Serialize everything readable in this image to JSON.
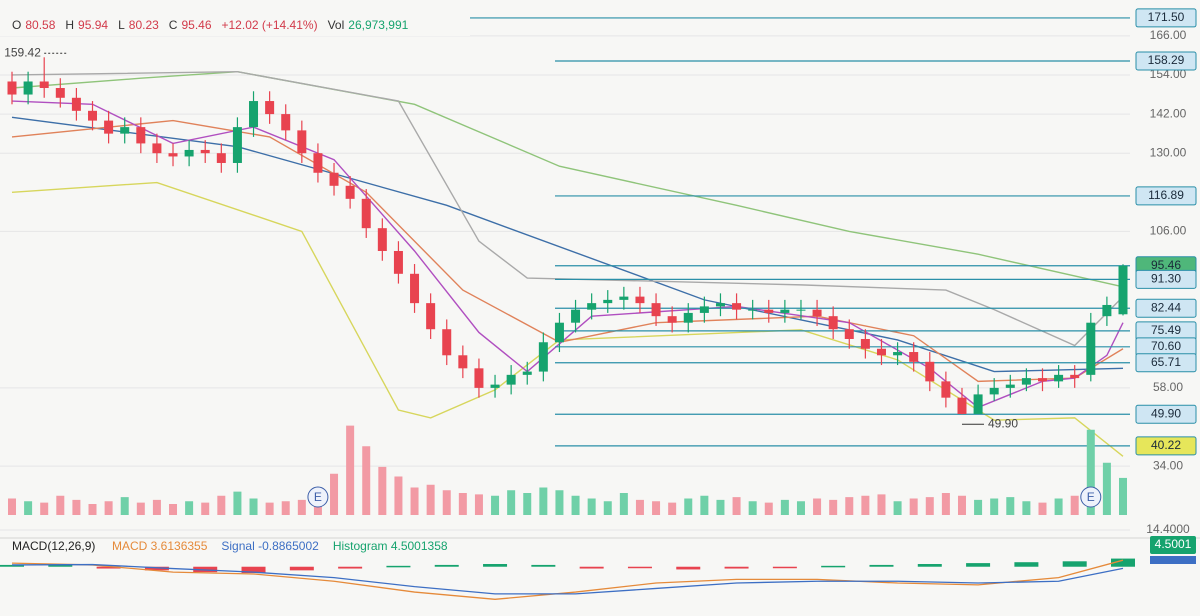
{
  "header": [
    {
      "key": "O",
      "value": "80.58"
    },
    {
      "key": "H",
      "value": "95.94"
    },
    {
      "key": "L",
      "value": "80.23"
    },
    {
      "key": "C",
      "value": "95.46"
    },
    {
      "key": "",
      "value": "+12.02 (+14.41%)"
    },
    {
      "key": "Vol",
      "value": "26,973,991"
    }
  ],
  "chart_data": [
    {
      "type": "candlestick",
      "up_color": "#16a36e",
      "down_color": "#e8434f",
      "open": [
        152,
        148,
        152,
        150,
        147,
        143,
        140,
        136,
        138,
        133,
        130,
        129,
        131,
        130,
        127,
        138,
        146,
        142,
        137,
        130,
        124,
        120,
        116,
        107,
        100,
        93,
        84,
        76,
        68,
        64,
        58,
        59,
        62,
        63,
        72,
        78,
        82,
        84,
        85,
        86,
        84,
        80,
        78,
        81,
        83,
        84,
        82,
        82,
        81,
        82,
        82,
        80,
        76,
        73,
        70,
        68,
        69,
        66,
        60,
        55,
        50,
        56,
        58,
        59,
        61,
        60,
        62,
        62,
        80,
        80.58
      ],
      "high": [
        155,
        155,
        159.42,
        153,
        150,
        146,
        143,
        141,
        141,
        136,
        133,
        134,
        134,
        133,
        141,
        149,
        149,
        145,
        140,
        133,
        127,
        123,
        119,
        110,
        103,
        96,
        87,
        79,
        71,
        67,
        62,
        65,
        66,
        75,
        81,
        85,
        87,
        88,
        89,
        89,
        87,
        83,
        84,
        86,
        87,
        87,
        85,
        85,
        85,
        85,
        85,
        83,
        79,
        76,
        73,
        72,
        72,
        69,
        63,
        58,
        59,
        61,
        62,
        64,
        64,
        65,
        65,
        81,
        86,
        95.94
      ],
      "low": [
        145,
        145,
        147,
        144,
        140,
        137,
        133,
        133,
        130,
        127,
        126,
        126,
        127,
        124,
        124,
        135,
        139,
        134,
        127,
        121,
        117,
        113,
        104,
        97,
        90,
        81,
        73,
        65,
        61,
        55,
        55,
        56,
        59,
        60,
        69,
        75,
        79,
        81,
        82,
        81,
        77,
        75,
        75,
        78,
        80,
        79,
        79,
        78,
        78,
        79,
        77,
        73,
        70,
        67,
        65,
        65,
        63,
        57,
        52,
        49.9,
        50.5,
        54,
        55,
        57,
        57,
        58,
        58,
        60,
        77,
        80.23
      ],
      "close": [
        148,
        152,
        150,
        147,
        143,
        140,
        136,
        138,
        133,
        130,
        129,
        131,
        130,
        127,
        138,
        146,
        142,
        137,
        130,
        124,
        120,
        116,
        107,
        100,
        93,
        84,
        76,
        68,
        64,
        58,
        59,
        62,
        63,
        72,
        78,
        82,
        84,
        85,
        86,
        84,
        80,
        78,
        81,
        83,
        84,
        82,
        82,
        81,
        82,
        82,
        80,
        76,
        73,
        70,
        68,
        69,
        66,
        60,
        55,
        50,
        56,
        58,
        59,
        61,
        60,
        62,
        61,
        78,
        83.44,
        95.46
      ],
      "ylim": [
        14.4,
        177
      ],
      "yticks": [
        {
          "value": 166,
          "label": "166.00"
        },
        {
          "value": 154,
          "label": "154.00"
        },
        {
          "value": 142,
          "label": "142.00"
        },
        {
          "value": 130,
          "label": "130.00"
        },
        {
          "value": 106,
          "label": "106.00"
        },
        {
          "value": 58,
          "label": "58.00"
        },
        {
          "value": 34,
          "label": "34.00"
        },
        {
          "value": 14.4,
          "label": "14.4000"
        }
      ],
      "grid": true,
      "levels": [
        {
          "value": 171.5,
          "label": "171.50",
          "color": "#2a8fa8",
          "box": "#cfe6f3"
        },
        {
          "value": 158.29,
          "label": "158.29",
          "color": "#2a8fa8",
          "box": "#cfe6f3"
        },
        {
          "value": 116.89,
          "label": "116.89",
          "color": "#2a8fa8",
          "box": "#cfe6f3"
        },
        {
          "value": 95.46,
          "label": "95.46",
          "color": "#2a8fa8",
          "box": "#4fb77a"
        },
        {
          "value": 91.3,
          "label": "91.30",
          "color": "#2a8fa8",
          "box": "#cfe6f3"
        },
        {
          "value": 82.44,
          "label": "82.44",
          "color": "#2a8fa8",
          "box": "#cfe6f3"
        },
        {
          "value": 75.49,
          "label": "75.49",
          "color": "#2a8fa8",
          "box": "#cfe6f3"
        },
        {
          "value": 70.6,
          "label": "70.60",
          "color": "#2a8fa8",
          "box": "#cfe6f3"
        },
        {
          "value": 65.71,
          "label": "65.71",
          "color": "#2a8fa8",
          "box": "#cfe6f3"
        },
        {
          "value": 49.9,
          "label": "49.90",
          "color": "#2a8fa8",
          "box": "#cfe6f3"
        },
        {
          "value": 40.22,
          "label": "40.22",
          "color": "#2a8fa8",
          "box": "#e6e65a"
        }
      ],
      "overlays": [
        {
          "color": "#8fc47a",
          "x": [
            0,
            8,
            14,
            25,
            34,
            45,
            52,
            60,
            69
          ],
          "values": [
            150,
            153,
            155,
            145,
            126,
            114,
            106,
            99,
            89
          ]
        },
        {
          "color": "#3d6fa8",
          "x": [
            0,
            14,
            27,
            43,
            55,
            61,
            69
          ],
          "values": [
            141,
            132,
            114,
            85,
            72.7,
            63,
            64
          ]
        },
        {
          "color": "#a9a9a9",
          "x": [
            0,
            14,
            24,
            29,
            32,
            49,
            58,
            61,
            66,
            69
          ],
          "values": [
            154,
            155,
            146,
            103,
            91.7,
            89.6,
            88,
            82,
            71,
            86
          ]
        },
        {
          "color": "#d7d65c",
          "x": [
            0,
            9,
            18,
            24,
            26,
            30,
            34,
            49,
            55,
            61,
            66,
            69
          ],
          "values": [
            118,
            121,
            106,
            51.2,
            48.8,
            57.4,
            72.7,
            75.8,
            66.6,
            48.1,
            48.8,
            37
          ]
        },
        {
          "color": "#e0825a",
          "x": [
            0,
            10,
            16,
            22,
            28,
            34,
            40,
            50,
            56,
            60,
            66,
            69
          ],
          "values": [
            135,
            140,
            135,
            118,
            88,
            72,
            78,
            80,
            74,
            60,
            61,
            70
          ]
        },
        {
          "color": "#b04fc0",
          "x": [
            0,
            5,
            10,
            15,
            20,
            25,
            29,
            32,
            36,
            45,
            52,
            57,
            60,
            64,
            66,
            68,
            69
          ],
          "values": [
            146,
            145,
            133,
            138,
            128,
            100,
            75,
            63,
            80,
            83,
            78,
            64,
            52,
            60,
            61,
            68,
            78
          ]
        }
      ],
      "annotations": [
        {
          "x": 2,
          "value": 159.42,
          "label": "159.42"
        },
        {
          "x": 59,
          "value": 49.9,
          "label": "49.90"
        }
      ]
    },
    {
      "type": "bar",
      "values": [
        12000000,
        10000000,
        9000000,
        14000000,
        11000000,
        8000000,
        10000000,
        13000000,
        9000000,
        11000000,
        8000000,
        10000000,
        9000000,
        14000000,
        17000000,
        12000000,
        9000000,
        10000000,
        11000000,
        18000000,
        30000000,
        65000000,
        50000000,
        35000000,
        28000000,
        20000000,
        22000000,
        18000000,
        16000000,
        15000000,
        14000000,
        18000000,
        16000000,
        20000000,
        18000000,
        14000000,
        12000000,
        10000000,
        16000000,
        11000000,
        10000000,
        9000000,
        12000000,
        14000000,
        11000000,
        13000000,
        10000000,
        9000000,
        11000000,
        10000000,
        12000000,
        11000000,
        13000000,
        14000000,
        15000000,
        10000000,
        12000000,
        13000000,
        16000000,
        14000000,
        11000000,
        12000000,
        13000000,
        10000000,
        9000000,
        12000000,
        14000000,
        62000000,
        38000000,
        26973991
      ],
      "up_color": "#6fd0a8",
      "down_color": "#f29aa4",
      "ylim": [
        0,
        80000000
      ],
      "events": [
        {
          "x": 19,
          "label": "E"
        },
        {
          "x": 67,
          "label": "E"
        }
      ]
    },
    {
      "type": "line",
      "title": "MACD(12,26,9)",
      "legend": [
        {
          "text": "MACD 3.6136355",
          "color": "#e58a3a"
        },
        {
          "text": "Signal -0.8865002",
          "color": "#3d6fc4"
        },
        {
          "text": "Histogram 4.5001358",
          "color": "#16a36e"
        }
      ],
      "last_label": "4.5001",
      "ylim": [
        -25,
        12
      ],
      "series": [
        {
          "color": "#e58a3a",
          "x": [
            0,
            5,
            10,
            15,
            20,
            25,
            30,
            35,
            40,
            45,
            50,
            55,
            60,
            65,
            69
          ],
          "values": [
            2,
            1,
            -3,
            -4,
            -8,
            -14,
            -18,
            -14,
            -9,
            -7,
            -7,
            -9,
            -10,
            -6,
            3.6136355
          ]
        },
        {
          "color": "#3d6fc4",
          "x": [
            0,
            5,
            10,
            15,
            20,
            25,
            30,
            35,
            40,
            45,
            50,
            55,
            60,
            65,
            69
          ],
          "values": [
            1,
            1.2,
            -1,
            -3,
            -6,
            -11,
            -15,
            -15,
            -12,
            -9,
            -8,
            -8,
            -9,
            -8,
            -0.8865002
          ]
        }
      ],
      "histogram": {
        "up_color": "#16a36e",
        "down_color": "#e8434f",
        "x": [
          0,
          3,
          6,
          9,
          12,
          15,
          18,
          21,
          24,
          27,
          30,
          33,
          36,
          39,
          42,
          45,
          48,
          51,
          54,
          57,
          60,
          63,
          66,
          69
        ],
        "values": [
          1,
          1.5,
          -1,
          -2,
          -3,
          -3.5,
          -2,
          -1,
          0.5,
          1,
          1.5,
          1,
          -1,
          -0.5,
          -1.5,
          -1,
          -0.5,
          0.5,
          1,
          1.5,
          2,
          2.5,
          3,
          4.5001358
        ]
      }
    }
  ]
}
